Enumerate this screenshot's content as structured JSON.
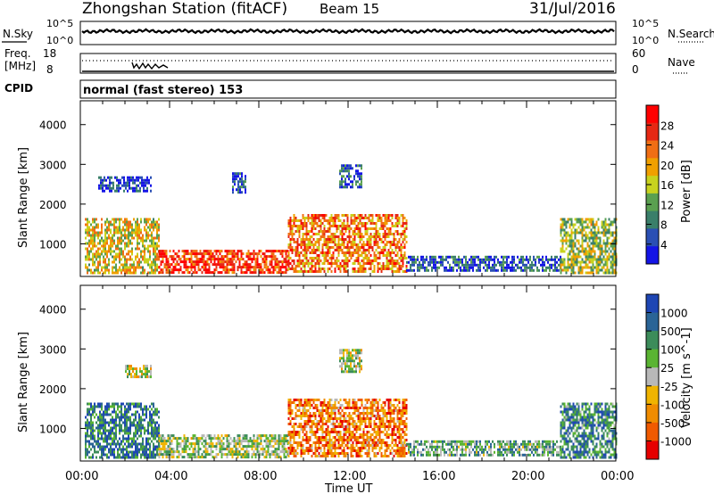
{
  "header": {
    "station_title": "Zhongshan Station (fitACF)",
    "beam": "Beam 15",
    "date": "31/Jul/2016"
  },
  "noise_panel": {
    "left_label": "N.Sky",
    "right_label": "N.Search",
    "left_ticks": [
      "10^5",
      "10^0"
    ],
    "right_ticks": [
      "10^5",
      "10^0"
    ]
  },
  "freq_panel": {
    "left_label_line1": "Freq.",
    "left_label_line2": "[MHz]",
    "right_label": "Nave",
    "left_ticks": [
      "18",
      "8"
    ],
    "right_ticks": [
      "60",
      "0"
    ]
  },
  "cpid_panel": {
    "label": "CPID",
    "text": "normal (fast stereo) 153"
  },
  "time_axis": {
    "label": "Time UT",
    "ticks": [
      "00:00",
      "04:00",
      "08:00",
      "12:00",
      "16:00",
      "20:00",
      "00:00"
    ]
  },
  "colors": {
    "power_scale": [
      "#1414e6",
      "#2a4fb4",
      "#3a7f6a",
      "#5aa050",
      "#c8d21e",
      "#f0a000",
      "#f06e14",
      "#e62814",
      "#ff0000"
    ],
    "velocity_scale": [
      "#e60000",
      "#f05a00",
      "#f08c00",
      "#f0b400",
      "#b8b8b8",
      "#5ab432",
      "#3c8c5a",
      "#2a6496",
      "#1e46b4"
    ]
  },
  "chart_data": [
    {
      "type": "heatmap",
      "name_label": "",
      "ylabel": "Slant Range [km]",
      "xlabel": "",
      "ylim": [
        180,
        4600
      ],
      "xlim_hours": [
        0,
        24
      ],
      "yticks": [
        1000,
        2000,
        3000,
        4000
      ],
      "colorbar": {
        "label": "Power [dB]",
        "ticks": [
          "4",
          "8",
          "12",
          "16",
          "20",
          "24",
          "28"
        ],
        "range": [
          0,
          31
        ]
      },
      "regions": [
        {
          "t": [
            0.2,
            3.5
          ],
          "r": [
            300,
            1650
          ],
          "level": 0.55
        },
        {
          "t": [
            3.5,
            9.3
          ],
          "r": [
            300,
            850
          ],
          "level": 0.85
        },
        {
          "t": [
            9.3,
            14.6
          ],
          "r": [
            300,
            1750
          ],
          "level": 0.7
        },
        {
          "t": [
            14.6,
            21.5
          ],
          "r": [
            300,
            700
          ],
          "level": 0.2
        },
        {
          "t": [
            21.5,
            24
          ],
          "r": [
            300,
            1650
          ],
          "level": 0.45
        },
        {
          "t": [
            0.8,
            3.2
          ],
          "r": [
            2300,
            2700
          ],
          "level": 0.1
        },
        {
          "t": [
            6.8,
            7.4
          ],
          "r": [
            2300,
            2800
          ],
          "level": 0.15
        },
        {
          "t": [
            11.6,
            12.6
          ],
          "r": [
            2400,
            3000
          ],
          "level": 0.2
        }
      ]
    },
    {
      "type": "heatmap",
      "ylabel": "Slant Range [km]",
      "xlabel": "Time UT",
      "ylim": [
        180,
        4600
      ],
      "xlim_hours": [
        0,
        24
      ],
      "yticks": [
        1000,
        2000,
        3000,
        4000
      ],
      "colorbar": {
        "label": "Velocity [m s^-1]",
        "ticks": [
          "1000",
          "500",
          "100",
          "25",
          "-25",
          "-100",
          "-500",
          "-1000"
        ],
        "range": [
          -1200,
          1200
        ]
      },
      "regions": [
        {
          "t": [
            0.2,
            3.5
          ],
          "r": [
            300,
            1650
          ],
          "level": 0.8
        },
        {
          "t": [
            3.5,
            9.3
          ],
          "r": [
            300,
            850
          ],
          "level": 0.55
        },
        {
          "t": [
            9.3,
            14.6
          ],
          "r": [
            300,
            1750
          ],
          "level": 0.25
        },
        {
          "t": [
            14.6,
            21.5
          ],
          "r": [
            300,
            700
          ],
          "level": 0.65
        },
        {
          "t": [
            21.5,
            24
          ],
          "r": [
            300,
            1650
          ],
          "level": 0.75
        },
        {
          "t": [
            2.0,
            3.2
          ],
          "r": [
            2300,
            2600
          ],
          "level": 0.5
        },
        {
          "t": [
            11.6,
            12.6
          ],
          "r": [
            2400,
            3000
          ],
          "level": 0.5
        }
      ]
    }
  ]
}
